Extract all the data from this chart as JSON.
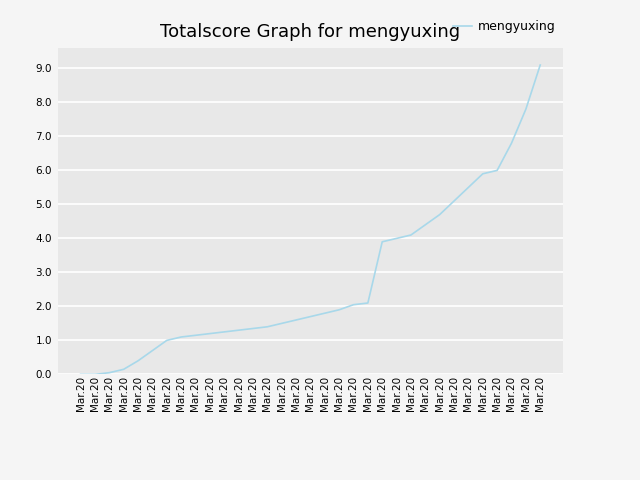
{
  "title": "Totalscore Graph for mengyuxing",
  "legend_label": "mengyuxing",
  "line_color": "#a8d8ea",
  "background_color": "#e8e8e8",
  "figure_facecolor": "#f5f5f5",
  "y_values": [
    0.0,
    0.0,
    0.05,
    0.15,
    0.4,
    0.7,
    1.0,
    1.1,
    1.15,
    1.2,
    1.25,
    1.3,
    1.35,
    1.4,
    1.5,
    1.6,
    1.7,
    1.8,
    1.9,
    2.05,
    2.1,
    3.9,
    4.0,
    4.1,
    4.4,
    4.7,
    5.1,
    5.5,
    5.9,
    6.0,
    6.8,
    7.8,
    9.1
  ],
  "x_label_text": "Mar.20",
  "n_points": 33,
  "ylim": [
    0.0,
    9.6
  ],
  "yticks": [
    0.0,
    1.0,
    2.0,
    3.0,
    4.0,
    5.0,
    6.0,
    7.0,
    8.0,
    9.0
  ],
  "title_fontsize": 13,
  "tick_fontsize": 7.5,
  "legend_fontsize": 9,
  "line_width": 1.2,
  "figsize": [
    6.4,
    4.8
  ],
  "dpi": 100
}
